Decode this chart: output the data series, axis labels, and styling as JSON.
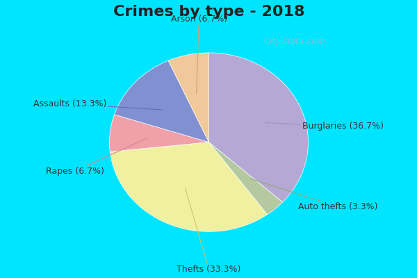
{
  "title": "Crimes by type - 2018",
  "labels": [
    "Burglaries",
    "Auto thefts",
    "Thefts",
    "Rapes",
    "Assaults",
    "Arson"
  ],
  "values": [
    36.7,
    3.3,
    33.3,
    6.7,
    13.3,
    6.7
  ],
  "colors": [
    "#b5a8d5",
    "#b5c9a0",
    "#f0f0a0",
    "#f0a0a8",
    "#8090d0",
    "#f0c89a"
  ],
  "label_texts": [
    "Burglaries (36.7%)",
    "Auto thefts (3.3%)",
    "Thefts (33.3%)",
    "Rapes (6.7%)",
    "Assaults (13.3%)",
    "Arson (6.7%)"
  ],
  "bg_top_color": "#00e5ff",
  "bg_main_color_top": "#d0ece0",
  "bg_main_color_bottom": "#b8d8c8",
  "title_fontsize": 16,
  "label_fontsize": 9,
  "watermark": "City-Data.com"
}
